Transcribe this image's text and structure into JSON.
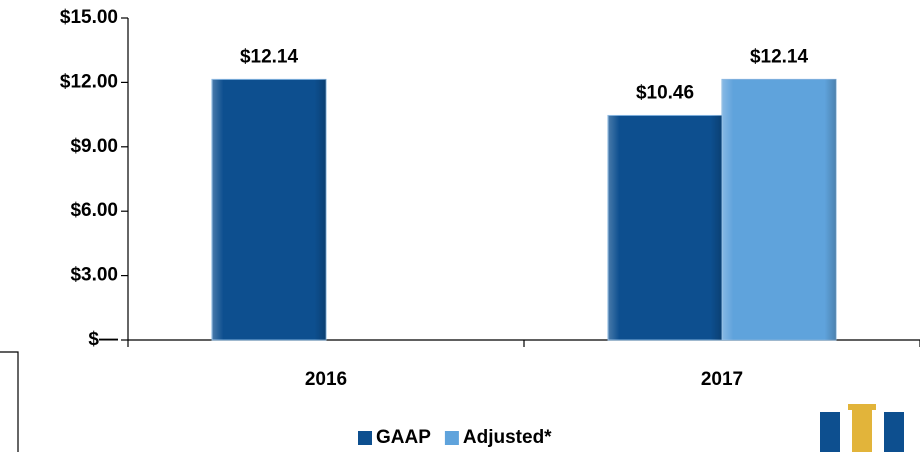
{
  "chart_data": {
    "type": "bar",
    "categories": [
      "2016",
      "2017"
    ],
    "series": [
      {
        "name": "GAAP",
        "color": "#0d4f8f",
        "values": [
          12.14,
          10.46
        ],
        "value_labels": [
          "$12.14",
          "$10.46"
        ]
      },
      {
        "name": "Adjusted*",
        "color": "#5fa3dc",
        "values": [
          null,
          12.14
        ],
        "value_labels": [
          null,
          "$12.14"
        ]
      }
    ],
    "ylim": [
      0,
      15
    ],
    "yticks": [
      {
        "value": 0,
        "label": "$—"
      },
      {
        "value": 3,
        "label": "$3.00"
      },
      {
        "value": 6,
        "label": "$6.00"
      },
      {
        "value": 9,
        "label": "$9.00"
      },
      {
        "value": 12,
        "label": "$12.00"
      },
      {
        "value": 15,
        "label": "$15.00"
      }
    ],
    "legend": "bottom"
  }
}
